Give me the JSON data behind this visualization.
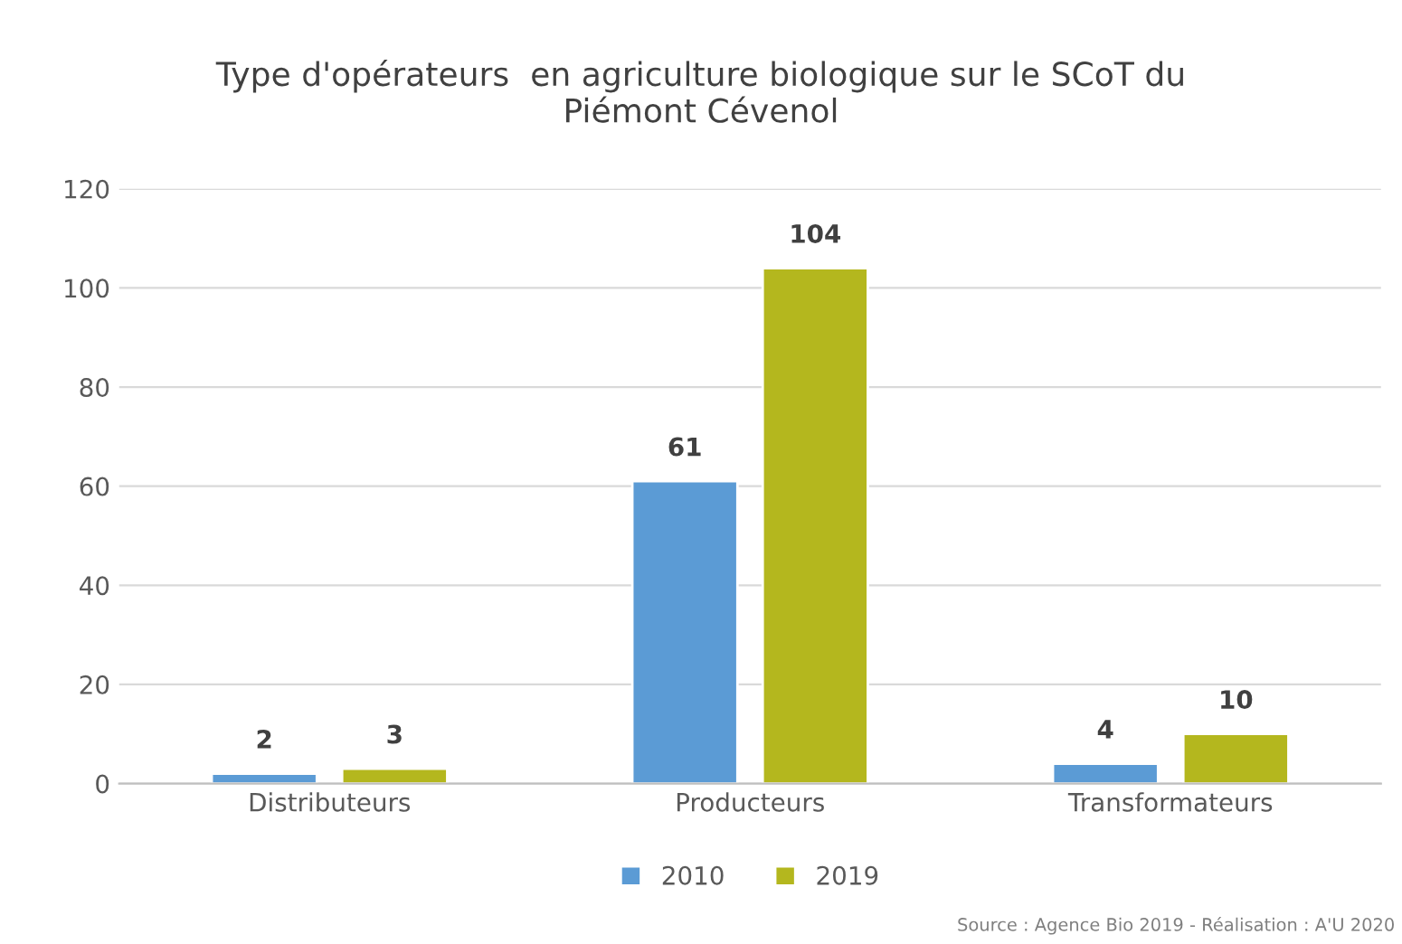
{
  "chart_data": {
    "type": "bar",
    "title": "Type d'opérateurs  en agriculture biologique sur le SCoT du\nPiémont Cévenol",
    "categories": [
      "Distributeurs",
      "Producteurs",
      "Transformateurs"
    ],
    "series": [
      {
        "name": "2010",
        "color": "#5b9bd5",
        "values": [
          2,
          61,
          4
        ]
      },
      {
        "name": "2019",
        "color": "#b4b71e",
        "values": [
          3,
          104,
          10
        ]
      }
    ],
    "ylim": [
      0,
      120
    ],
    "yticks": [
      0,
      20,
      40,
      60,
      80,
      100,
      120
    ],
    "grid": "y",
    "legend": "bottom",
    "data_labels": true,
    "annotations": [
      "Source : Agence Bio 2019 - Réalisation : A'U 2020"
    ]
  }
}
